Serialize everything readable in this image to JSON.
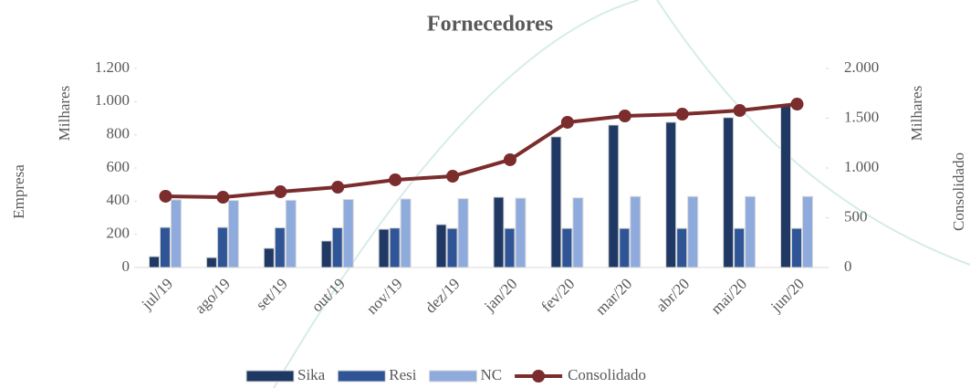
{
  "chart_data": {
    "type": "bar-line",
    "title": "Fornecedores",
    "y_label": "Milhares",
    "y_title": "Empresa",
    "y2_label": "Milhares",
    "y2_title": "Consolidado",
    "categories": [
      "jul/19",
      "ago/19",
      "set/19",
      "out/19",
      "nov/19",
      "dez/19",
      "jan/20",
      "fev/20",
      "mar/20",
      "abr/20",
      "mai/20",
      "jun/20"
    ],
    "series": [
      {
        "name": "Sika",
        "color": "#1f3864",
        "kind": "bar",
        "values": [
          66,
          60,
          116,
          160,
          231,
          259,
          424,
          788,
          859,
          876,
          904,
          975
        ]
      },
      {
        "name": "Resi",
        "color": "#2f5597",
        "kind": "bar",
        "values": [
          242,
          242,
          240,
          240,
          238,
          236,
          236,
          236,
          236,
          236,
          236,
          236
        ]
      },
      {
        "name": "NC",
        "color": "#8faadc",
        "kind": "bar",
        "values": [
          408,
          404,
          405,
          410,
          413,
          415,
          418,
          420,
          428,
          428,
          428,
          428
        ]
      },
      {
        "name": "Consolidado",
        "color": "#7b2c2c",
        "kind": "line",
        "axis": "y2",
        "values": [
          716,
          706,
          761,
          807,
          881,
          917,
          1083,
          1459,
          1523,
          1541,
          1578,
          1642
        ]
      }
    ],
    "ylim": [
      0,
      1200
    ],
    "yticks": [
      0,
      200,
      400,
      600,
      800,
      {
        "value": 1000,
        "label": "1.000"
      },
      {
        "value": 1200,
        "label": "1.200"
      }
    ],
    "y2lim": [
      0,
      2000
    ],
    "y2ticks": [
      0,
      500,
      {
        "value": 1000,
        "label": "1.000"
      },
      {
        "value": 1500,
        "label": "1.500"
      },
      {
        "value": 2000,
        "label": "2.000"
      }
    ],
    "legend": "bottom"
  }
}
